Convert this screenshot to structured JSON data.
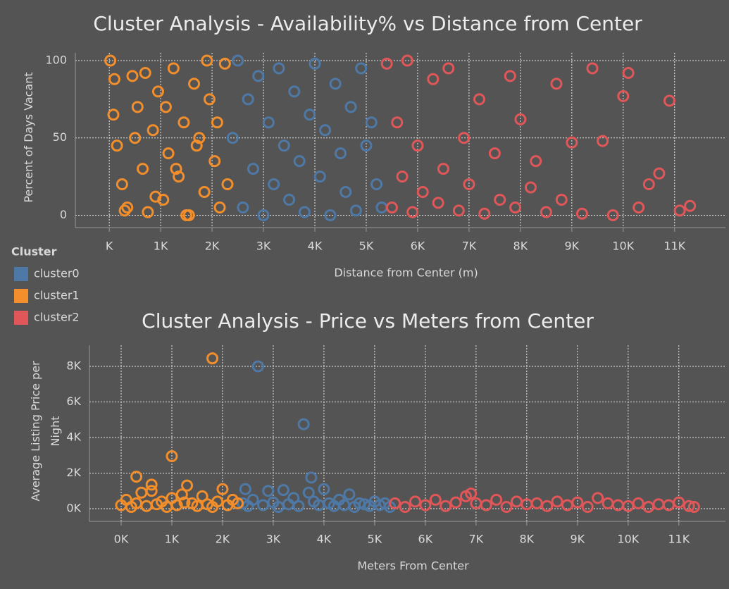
{
  "chart_data": [
    {
      "type": "scatter",
      "title": "Cluster Analysis - Availability% vs Distance from Center",
      "x_label": "Distance from Center (m)",
      "y_label": "Percent of Days Vacant",
      "legend_title": "Cluster",
      "grid": true,
      "xlim": [
        -660,
        11990
      ],
      "ylim": [
        -8,
        105
      ],
      "xticks": [
        {
          "value": 0,
          "label": "K"
        },
        {
          "value": 1000,
          "label": "1K"
        },
        {
          "value": 2000,
          "label": "2K"
        },
        {
          "value": 3000,
          "label": "3K"
        },
        {
          "value": 4000,
          "label": "4K"
        },
        {
          "value": 5000,
          "label": "5K"
        },
        {
          "value": 6000,
          "label": "6K"
        },
        {
          "value": 7000,
          "label": "7K"
        },
        {
          "value": 8000,
          "label": "8K"
        },
        {
          "value": 9000,
          "label": "9K"
        },
        {
          "value": 10000,
          "label": "10K"
        },
        {
          "value": 11000,
          "label": "11K"
        }
      ],
      "yticks": [
        0,
        50,
        100
      ],
      "series": [
        {
          "name": "cluster0",
          "color": "#4e79a7",
          "x": [
            2400,
            2500,
            2600,
            2700,
            2800,
            2900,
            3000,
            3100,
            3200,
            3300,
            3400,
            3500,
            3600,
            3700,
            3800,
            3900,
            4000,
            4100,
            4200,
            4300,
            4400,
            4500,
            4600,
            4700,
            4800,
            4900,
            5000,
            5100,
            5200,
            5300
          ],
          "values": [
            50,
            100,
            5,
            75,
            30,
            90,
            0,
            60,
            20,
            95,
            45,
            10,
            80,
            35,
            2,
            65,
            98,
            25,
            55,
            0,
            85,
            40,
            15,
            70,
            3,
            95,
            45,
            60,
            20,
            5
          ]
        },
        {
          "name": "cluster1",
          "color": "#f28e2b",
          "x": [
            20,
            80,
            150,
            250,
            350,
            450,
            550,
            650,
            750,
            850,
            950,
            1050,
            1150,
            1250,
            1350,
            1450,
            1550,
            1650,
            1750,
            1850,
            1950,
            2050,
            2150,
            2250,
            100,
            300,
            500,
            700,
            900,
            1100,
            1300,
            1500,
            1700,
            1900,
            2100,
            2300
          ],
          "values": [
            100,
            65,
            45,
            20,
            5,
            90,
            70,
            30,
            2,
            55,
            80,
            10,
            40,
            95,
            25,
            60,
            0,
            85,
            50,
            15,
            75,
            35,
            5,
            98,
            88,
            3,
            50,
            92,
            12,
            70,
            30,
            0,
            45,
            100,
            60,
            20
          ]
        },
        {
          "name": "cluster2",
          "color": "#e15759",
          "x": [
            5400,
            5500,
            5600,
            5700,
            5800,
            5900,
            6000,
            6100,
            6300,
            6400,
            6500,
            6600,
            6800,
            6900,
            7000,
            7200,
            7300,
            7500,
            7600,
            7800,
            7900,
            8000,
            8200,
            8300,
            8500,
            8700,
            8800,
            9000,
            9200,
            9400,
            9600,
            9800,
            10000,
            10100,
            10300,
            10500,
            10700,
            10900,
            11100,
            11300
          ],
          "values": [
            98,
            5,
            60,
            25,
            100,
            2,
            45,
            15,
            88,
            8,
            30,
            95,
            3,
            50,
            20,
            75,
            1,
            40,
            10,
            90,
            5,
            62,
            18,
            35,
            2,
            85,
            10,
            47,
            1,
            95,
            48,
            0,
            77,
            92,
            5,
            20,
            27,
            74,
            3,
            6
          ]
        }
      ]
    },
    {
      "type": "scatter",
      "title": "Cluster Analysis - Price vs Meters from Center",
      "x_label": "Meters From Center",
      "y_label": "Average Listing Price per Night",
      "grid": true,
      "xlim": [
        -625,
        11920
      ],
      "ylim": [
        -713,
        9190
      ],
      "xticks": [
        {
          "value": 0,
          "label": "0K"
        },
        {
          "value": 1000,
          "label": "1K"
        },
        {
          "value": 2000,
          "label": "2K"
        },
        {
          "value": 3000,
          "label": "3K"
        },
        {
          "value": 4000,
          "label": "4K"
        },
        {
          "value": 5000,
          "label": "5K"
        },
        {
          "value": 6000,
          "label": "6K"
        },
        {
          "value": 7000,
          "label": "7K"
        },
        {
          "value": 8000,
          "label": "8K"
        },
        {
          "value": 9000,
          "label": "9K"
        },
        {
          "value": 10000,
          "label": "10K"
        },
        {
          "value": 11000,
          "label": "11K"
        }
      ],
      "yticks": [
        {
          "value": 0,
          "label": "0K"
        },
        {
          "value": 2000,
          "label": "2K"
        },
        {
          "value": 4000,
          "label": "4K"
        },
        {
          "value": 6000,
          "label": "6K"
        },
        {
          "value": 8000,
          "label": "8K"
        }
      ],
      "series": [
        {
          "name": "cluster0",
          "color": "#4e79a7",
          "x": [
            2400,
            2500,
            2600,
            2800,
            2900,
            3000,
            3100,
            3200,
            3300,
            3400,
            3500,
            3700,
            3800,
            3900,
            4000,
            4100,
            4200,
            4300,
            4400,
            4500,
            4600,
            4700,
            4800,
            4900,
            5000,
            5100,
            5200,
            5300,
            2700,
            3600,
            3750,
            2450
          ],
          "values": [
            300,
            150,
            500,
            200,
            1000,
            350,
            100,
            1050,
            250,
            600,
            150,
            900,
            400,
            200,
            1100,
            300,
            150,
            500,
            200,
            800,
            100,
            300,
            250,
            150,
            400,
            200,
            300,
            100,
            8000,
            4750,
            1750,
            1100
          ]
        },
        {
          "name": "cluster1",
          "color": "#f28e2b",
          "x": [
            0,
            100,
            200,
            300,
            400,
            500,
            600,
            700,
            800,
            900,
            1000,
            1100,
            1200,
            1300,
            1400,
            1500,
            1600,
            1700,
            1800,
            1900,
            2000,
            2100,
            2200,
            2300,
            300,
            1000,
            1800,
            600,
            1250
          ],
          "values": [
            200,
            500,
            100,
            300,
            900,
            150,
            1350,
            250,
            400,
            100,
            600,
            200,
            800,
            1300,
            300,
            150,
            700,
            250,
            8450,
            400,
            1100,
            200,
            500,
            300,
            1800,
            2950,
            100,
            1000,
            350
          ]
        },
        {
          "name": "cluster2",
          "color": "#e15759",
          "x": [
            5400,
            5600,
            5800,
            6000,
            6200,
            6400,
            6600,
            6800,
            6900,
            7000,
            7200,
            7400,
            7600,
            7800,
            8000,
            8200,
            8400,
            8600,
            8800,
            9000,
            9200,
            9400,
            9600,
            9800,
            10000,
            10200,
            10400,
            10600,
            10800,
            11000,
            11200,
            11300
          ],
          "values": [
            300,
            100,
            400,
            200,
            500,
            150,
            350,
            700,
            850,
            300,
            200,
            500,
            100,
            400,
            250,
            300,
            150,
            400,
            200,
            350,
            100,
            600,
            300,
            200,
            150,
            300,
            100,
            250,
            200,
            350,
            150,
            100
          ]
        }
      ]
    }
  ]
}
